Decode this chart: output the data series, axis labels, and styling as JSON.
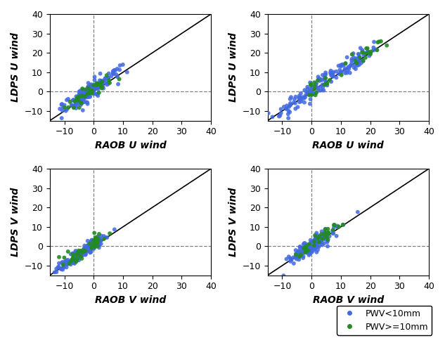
{
  "xlim": [
    -15,
    40
  ],
  "ylim": [
    -15,
    40
  ],
  "xticks": [
    -10,
    0,
    10,
    20,
    30,
    40
  ],
  "yticks": [
    -10,
    0,
    10,
    20,
    30,
    40
  ],
  "diag_line": [
    -15,
    40
  ],
  "blue_color": "#4169E1",
  "green_color": "#228B22",
  "panels": [
    {
      "ylabel": "LDPS U wind",
      "xlabel": "RAOB U wind"
    },
    {
      "ylabel": "LDPS U wind",
      "xlabel": "RAOB U wind"
    },
    {
      "ylabel": "LDPS V wind",
      "xlabel": "RAOB V wind"
    },
    {
      "ylabel": "LDPS V wind",
      "xlabel": "RAOB V wind"
    }
  ],
  "legend_labels": [
    "PWV<10mm",
    "PWV>=10mm"
  ],
  "marker_size": 18,
  "font_size": 9,
  "label_font_size": 10
}
